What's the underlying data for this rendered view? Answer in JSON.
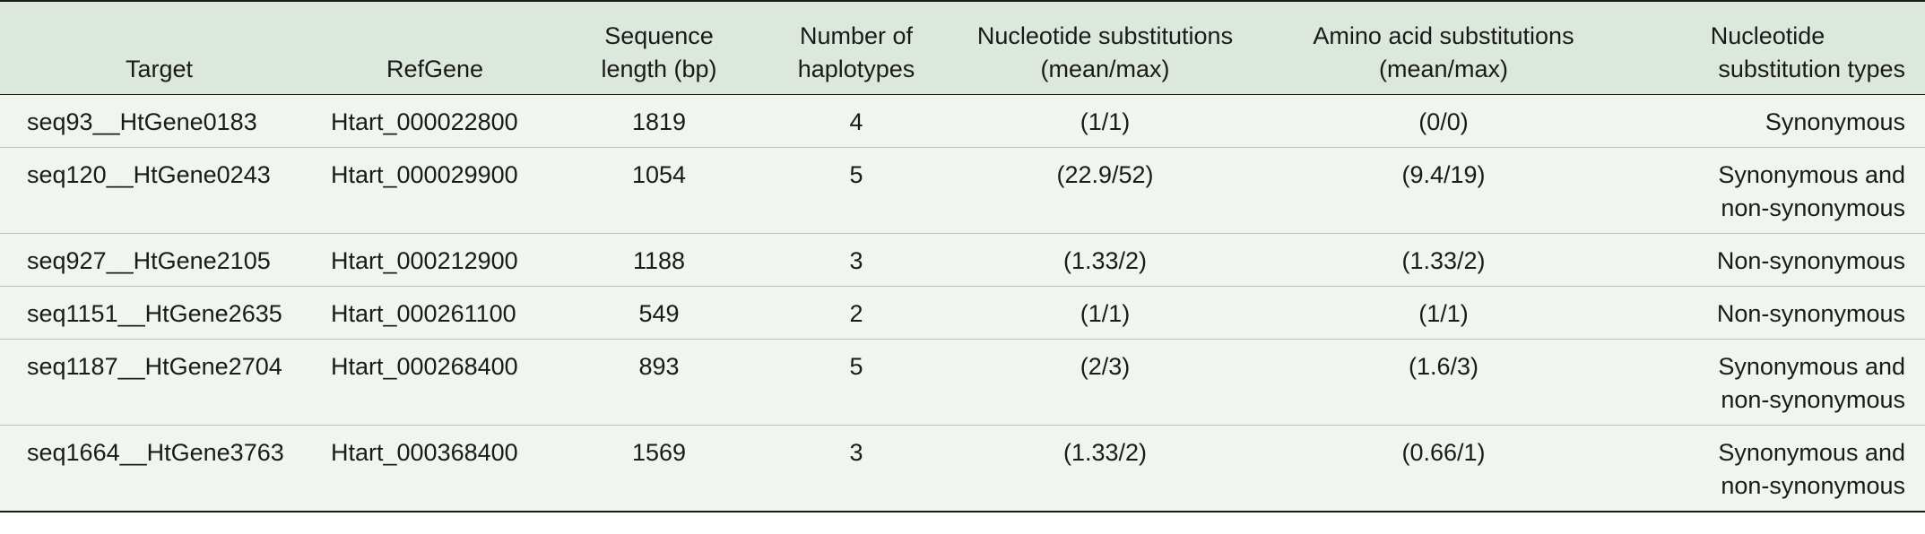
{
  "table": {
    "headers": {
      "target": "Target",
      "refgene": "RefGene",
      "seq_length_1": "Sequence",
      "seq_length_2": "length (bp)",
      "haplotypes_1": "Number of",
      "haplotypes_2": "haplotypes",
      "nuc_subs_1": "Nucleotide substitutions",
      "nuc_subs_2": "(mean/max)",
      "aa_subs_1": "Amino acid substitutions",
      "aa_subs_2": "(mean/max)",
      "types_1": "Nucleotide",
      "types_2": "substitution types"
    },
    "rows": [
      {
        "target": "seq93__HtGene0183",
        "refgene": "Htart_000022800",
        "length": "1819",
        "haplotypes": "4",
        "nuc_subs": "(1/1)",
        "aa_subs": "(0/0)",
        "types_1": "Synonymous",
        "types_2": ""
      },
      {
        "target": "seq120__HtGene0243",
        "refgene": "Htart_000029900",
        "length": "1054",
        "haplotypes": "5",
        "nuc_subs": "(22.9/52)",
        "aa_subs": "(9.4/19)",
        "types_1": "Synonymous and",
        "types_2": "non-synonymous"
      },
      {
        "target": "seq927__HtGene2105",
        "refgene": "Htart_000212900",
        "length": "1188",
        "haplotypes": "3",
        "nuc_subs": "(1.33/2)",
        "aa_subs": "(1.33/2)",
        "types_1": "Non-synonymous",
        "types_2": ""
      },
      {
        "target": "seq1151__HtGene2635",
        "refgene": "Htart_000261100",
        "length": "549",
        "haplotypes": "2",
        "nuc_subs": "(1/1)",
        "aa_subs": "(1/1)",
        "types_1": "Non-synonymous",
        "types_2": ""
      },
      {
        "target": "seq1187__HtGene2704",
        "refgene": "Htart_000268400",
        "length": "893",
        "haplotypes": "5",
        "nuc_subs": "(2/3)",
        "aa_subs": "(1.6/3)",
        "types_1": "Synonymous and",
        "types_2": "non-synonymous"
      },
      {
        "target": "seq1664__HtGene3763",
        "refgene": "Htart_000368400",
        "length": "1569",
        "haplotypes": "3",
        "nuc_subs": "(1.33/2)",
        "aa_subs": "(0.66/1)",
        "types_1": "Synonymous and",
        "types_2": "non-synonymous"
      }
    ]
  }
}
